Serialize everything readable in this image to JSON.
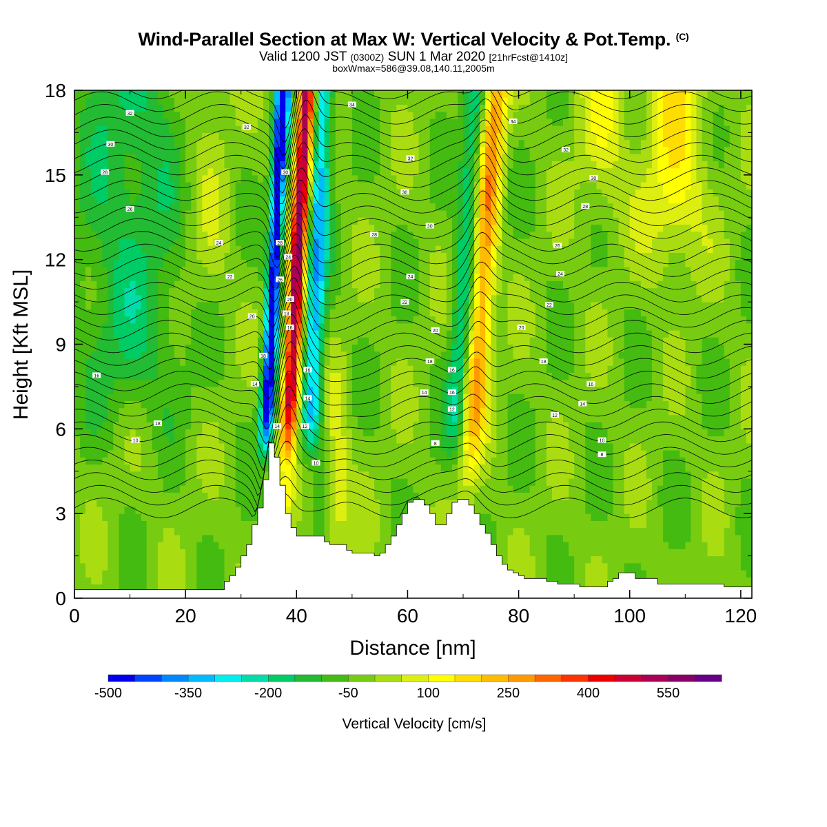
{
  "title": {
    "main": "Wind-Parallel Section at Max W: Vertical Velocity & Pot.Temp.",
    "main_mark": "(C)",
    "valid_a": "Valid 1200 JST",
    "valid_b": "(0300Z)",
    "valid_c": "SUN 1 Mar 2020",
    "valid_d": "[21hrFcst@1410z]",
    "box": "boxWmax=586@39.08,140.11,2005m"
  },
  "chart_data": {
    "type": "heatmap",
    "xlabel": "Distance [nm]",
    "ylabel": "Height [Kft MSL]",
    "xlim": [
      0,
      122
    ],
    "ylim": [
      0,
      18
    ],
    "xticks": [
      "0",
      "20",
      "40",
      "60",
      "80",
      "100",
      "120"
    ],
    "yticks": [
      "0",
      "3",
      "6",
      "9",
      "12",
      "15",
      "18"
    ],
    "colorbar": {
      "title": "Vertical Velocity [cm/s]",
      "labels": [
        "-500",
        "-350",
        "-200",
        "-50",
        "100",
        "250",
        "400",
        "550"
      ],
      "levels": [
        -500,
        -450,
        -400,
        -350,
        -300,
        -250,
        -200,
        -150,
        -100,
        -50,
        0,
        50,
        100,
        150,
        200,
        250,
        300,
        350,
        400,
        450,
        500,
        550,
        600,
        650
      ],
      "colors": [
        "#0000ee",
        "#0044ff",
        "#0088ff",
        "#00bbff",
        "#00eeee",
        "#00ddaa",
        "#00cc66",
        "#22bb33",
        "#44bb11",
        "#77cc11",
        "#aadd11",
        "#ddee11",
        "#ffff00",
        "#ffdd00",
        "#ffbb00",
        "#ff9900",
        "#ff6600",
        "#ff3300",
        "#ee0000",
        "#cc0033",
        "#aa0055",
        "#880066",
        "#660088"
      ]
    },
    "features": [
      {
        "kind": "downdraft",
        "x_center": 34.5,
        "min_w": -500
      },
      {
        "kind": "updraft",
        "x_center": 38.5,
        "max_w": 586
      },
      {
        "kind": "downdraft",
        "x_center": 42.5,
        "min_w": -300
      },
      {
        "kind": "updraft",
        "x_center": 73,
        "max_w": 300
      },
      {
        "kind": "downdraft",
        "x_center": 70,
        "min_w": -150
      }
    ],
    "terrain_x": [
      0,
      27,
      28,
      29,
      30,
      31,
      32,
      33,
      34,
      35,
      36,
      37,
      38,
      39,
      40,
      44,
      45,
      46,
      47,
      48,
      49,
      50,
      51,
      52,
      53,
      54,
      55,
      56,
      57,
      58,
      59,
      60,
      61,
      62,
      63,
      64,
      65,
      66,
      67,
      68,
      69,
      70,
      71,
      72,
      73,
      74,
      75,
      76,
      77,
      78,
      79,
      80,
      81,
      82,
      83,
      84,
      85,
      86,
      87,
      88,
      89,
      90,
      91,
      92,
      93,
      94,
      95,
      96,
      97,
      98,
      99,
      100,
      101,
      102,
      103,
      104,
      105,
      106,
      107,
      108,
      109,
      110,
      111,
      112,
      113,
      114,
      115,
      116,
      117,
      118,
      119,
      120,
      121,
      122
    ],
    "terrain_y": [
      0.3,
      0.6,
      0.8,
      1.1,
      1.5,
      1.9,
      2.6,
      3.2,
      4.2,
      5.5,
      5.0,
      4.0,
      3.0,
      2.5,
      2.2,
      2.2,
      2.0,
      1.9,
      1.9,
      1.9,
      1.7,
      1.6,
      1.6,
      1.6,
      1.6,
      1.5,
      1.6,
      1.9,
      2.2,
      2.6,
      3.0,
      3.4,
      3.5,
      3.5,
      3.3,
      3.0,
      2.6,
      2.6,
      3.0,
      3.4,
      3.5,
      3.5,
      3.3,
      3.0,
      2.6,
      2.3,
      1.9,
      1.5,
      1.2,
      1.0,
      0.9,
      0.8,
      0.7,
      0.7,
      0.7,
      0.7,
      0.6,
      0.6,
      0.5,
      0.5,
      0.5,
      0.5,
      0.4,
      0.4,
      0.4,
      0.4,
      0.4,
      0.6,
      0.7,
      0.9,
      0.9,
      0.9,
      0.7,
      0.7,
      0.7,
      0.7,
      0.5,
      0.5,
      0.5,
      0.5,
      0.5,
      0.5,
      0.5,
      0.5,
      0.5,
      0.5,
      0.5,
      0.5,
      0.4,
      0.4,
      0.4,
      0.4,
      0.4,
      0.4
    ],
    "isentrope_levels": [
      0,
      2,
      4,
      6,
      8,
      10,
      12,
      14,
      16,
      18,
      20,
      22,
      24,
      26,
      28,
      30,
      32,
      34
    ],
    "isentrope_labels": [
      {
        "x": 10,
        "y": 17.2,
        "text": "32"
      },
      {
        "x": 6.5,
        "y": 16.1,
        "text": "30"
      },
      {
        "x": 5.5,
        "y": 15.1,
        "text": "28"
      },
      {
        "x": 10,
        "y": 13.8,
        "text": "26"
      },
      {
        "x": 26,
        "y": 12.6,
        "text": "24"
      },
      {
        "x": 28,
        "y": 11.4,
        "text": "22"
      },
      {
        "x": 32,
        "y": 10.0,
        "text": "20"
      },
      {
        "x": 34,
        "y": 8.6,
        "text": "18"
      },
      {
        "x": 32.5,
        "y": 7.6,
        "text": "14"
      },
      {
        "x": 4,
        "y": 7.9,
        "text": "16"
      },
      {
        "x": 15,
        "y": 6.2,
        "text": "18"
      },
      {
        "x": 11,
        "y": 5.6,
        "text": "10"
      },
      {
        "x": 31,
        "y": 16.7,
        "text": "32"
      },
      {
        "x": 38,
        "y": 15.1,
        "text": "30"
      },
      {
        "x": 37,
        "y": 12.6,
        "text": "28"
      },
      {
        "x": 37,
        "y": 11.3,
        "text": "26"
      },
      {
        "x": 38.5,
        "y": 12.1,
        "text": "24"
      },
      {
        "x": 38.8,
        "y": 10.6,
        "text": "20"
      },
      {
        "x": 38.2,
        "y": 10.1,
        "text": "18"
      },
      {
        "x": 38.8,
        "y": 9.6,
        "text": "16"
      },
      {
        "x": 42,
        "y": 8.1,
        "text": "16"
      },
      {
        "x": 42,
        "y": 7.1,
        "text": "14"
      },
      {
        "x": 41.5,
        "y": 6.1,
        "text": "12"
      },
      {
        "x": 36.5,
        "y": 6.1,
        "text": "14"
      },
      {
        "x": 43.5,
        "y": 4.8,
        "text": "10"
      },
      {
        "x": 50,
        "y": 17.5,
        "text": "34"
      },
      {
        "x": 60.5,
        "y": 15.6,
        "text": "32"
      },
      {
        "x": 59.5,
        "y": 14.4,
        "text": "30"
      },
      {
        "x": 64,
        "y": 13.2,
        "text": "30"
      },
      {
        "x": 54,
        "y": 12.9,
        "text": "28"
      },
      {
        "x": 60.5,
        "y": 11.4,
        "text": "24"
      },
      {
        "x": 59.5,
        "y": 10.5,
        "text": "22"
      },
      {
        "x": 65,
        "y": 9.5,
        "text": "20"
      },
      {
        "x": 64,
        "y": 8.4,
        "text": "18"
      },
      {
        "x": 68,
        "y": 8.1,
        "text": "16"
      },
      {
        "x": 68,
        "y": 7.3,
        "text": "16"
      },
      {
        "x": 63,
        "y": 7.3,
        "text": "14"
      },
      {
        "x": 68,
        "y": 6.7,
        "text": "12"
      },
      {
        "x": 65,
        "y": 5.5,
        "text": "8"
      },
      {
        "x": 79,
        "y": 16.9,
        "text": "34"
      },
      {
        "x": 88.5,
        "y": 15.9,
        "text": "32"
      },
      {
        "x": 93.5,
        "y": 14.9,
        "text": "30"
      },
      {
        "x": 92,
        "y": 13.9,
        "text": "28"
      },
      {
        "x": 87,
        "y": 12.5,
        "text": "26"
      },
      {
        "x": 87.5,
        "y": 11.5,
        "text": "24"
      },
      {
        "x": 85.5,
        "y": 10.4,
        "text": "22"
      },
      {
        "x": 80.5,
        "y": 9.6,
        "text": "20"
      },
      {
        "x": 84.5,
        "y": 8.4,
        "text": "18"
      },
      {
        "x": 93,
        "y": 7.6,
        "text": "16"
      },
      {
        "x": 91.5,
        "y": 6.9,
        "text": "14"
      },
      {
        "x": 86.5,
        "y": 6.5,
        "text": "12"
      },
      {
        "x": 95,
        "y": 5.6,
        "text": "10"
      },
      {
        "x": 95,
        "y": 5.1,
        "text": "8"
      }
    ]
  }
}
